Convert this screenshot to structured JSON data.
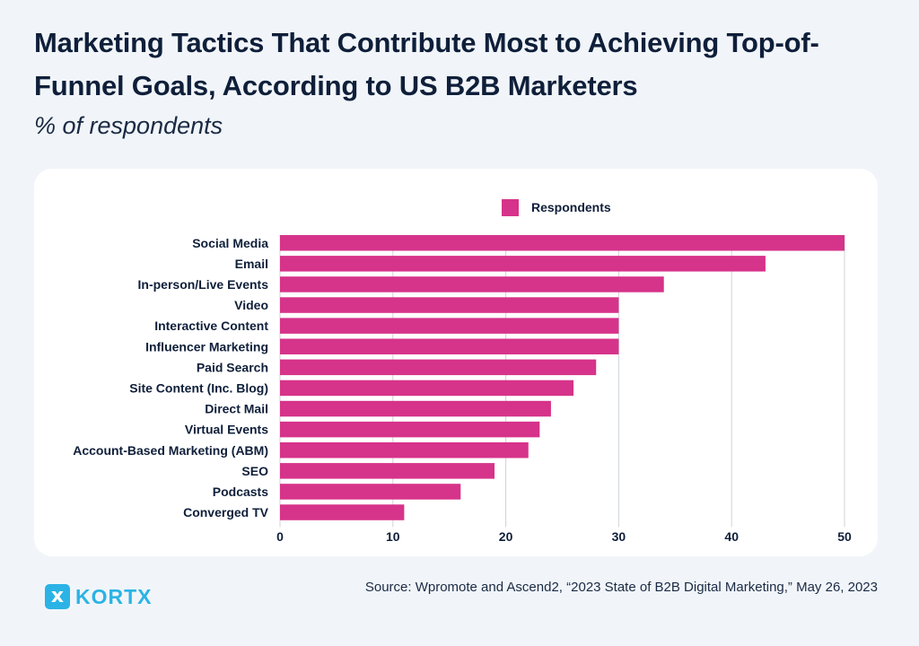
{
  "title": "Marketing Tactics That Contribute Most to Achieving Top-of-Funnel Goals, According to US B2B Marketers",
  "subtitle": "% of respondents",
  "source": "Source: Wpromote and Ascend2, “2023 State of B2B Digital Marketing,” May 26, 2023",
  "logo": {
    "mark": "x",
    "text": "KORTX",
    "icon": "kortx-logo-icon"
  },
  "colors": {
    "bar": "#d6338a",
    "grid": "#cfd3d8",
    "text": "#0f1f3a",
    "brand": "#2bb3e6",
    "background": "#f1f5f9"
  },
  "chart_data": {
    "type": "bar",
    "orientation": "horizontal",
    "categories": [
      "Social Media",
      "Email",
      "In-person/Live Events",
      "Video",
      "Interactive Content",
      "Influencer Marketing",
      "Paid Search",
      "Site Content (Inc. Blog)",
      "Direct Mail",
      "Virtual Events",
      "Account-Based Marketing (ABM)",
      "SEO",
      "Podcasts",
      "Converged TV"
    ],
    "series": [
      {
        "name": "Respondents",
        "values": [
          50,
          43,
          34,
          30,
          30,
          30,
          28,
          26,
          24,
          23,
          22,
          19,
          16,
          11
        ]
      }
    ],
    "xlim": [
      0,
      50
    ],
    "xticks": [
      0,
      10,
      20,
      30,
      40,
      50
    ],
    "grid": true,
    "legend": "top-center"
  }
}
